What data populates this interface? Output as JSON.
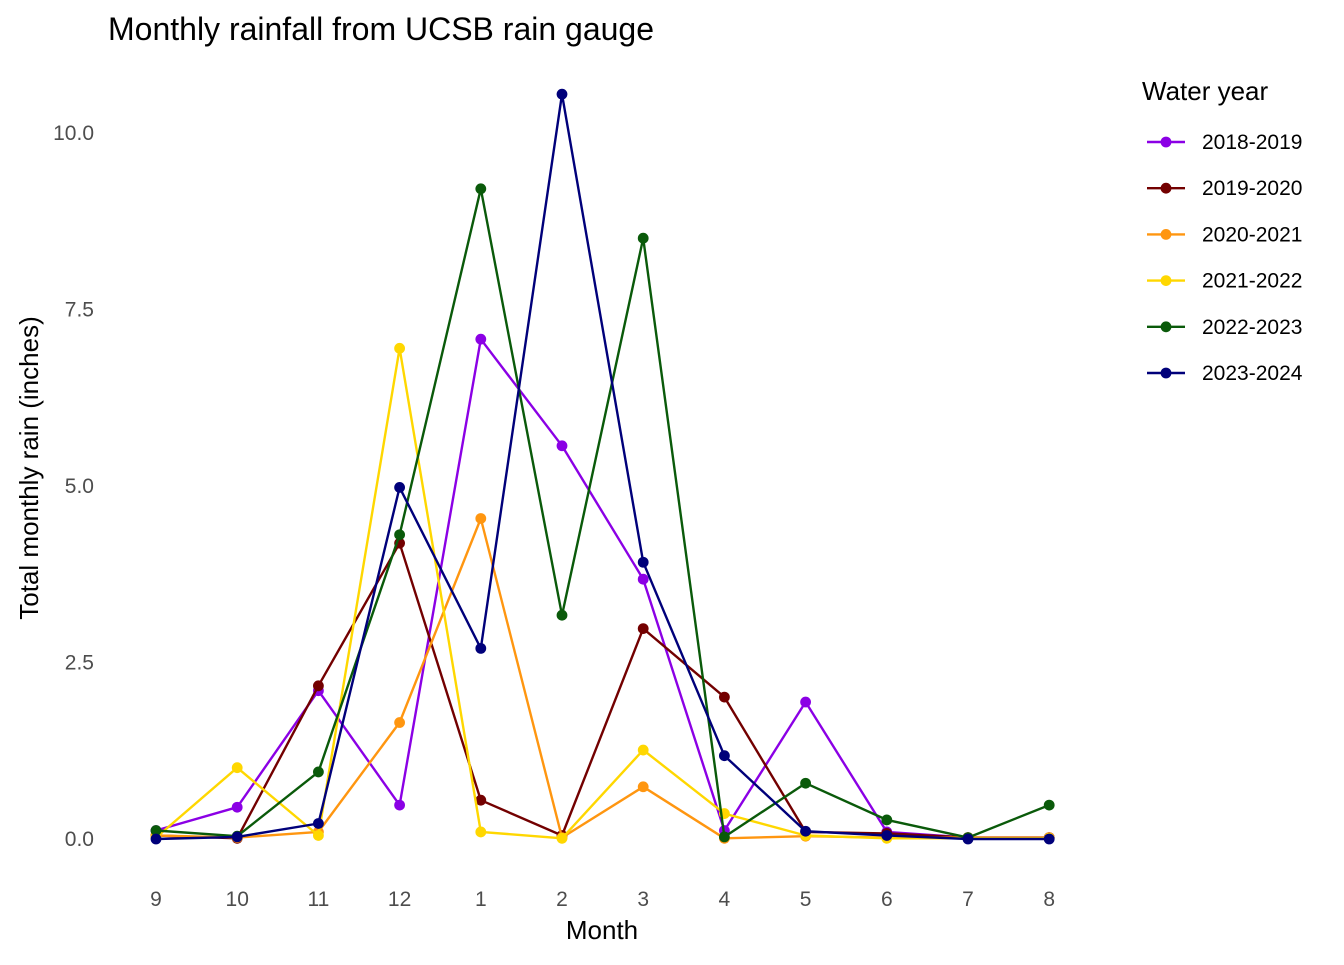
{
  "chart_data": {
    "type": "line",
    "title": "Monthly rainfall from UCSB rain gauge",
    "xlabel": "Month",
    "ylabel": "Total monthly rain (inches)",
    "categories": [
      "9",
      "10",
      "11",
      "12",
      "1",
      "2",
      "3",
      "4",
      "5",
      "6",
      "7",
      "8"
    ],
    "ylim": [
      -0.45,
      10.6
    ],
    "yticks": [
      0.0,
      2.5,
      5.0,
      7.5,
      10.0
    ],
    "ytick_labels": [
      "0.0",
      "2.5",
      "5.0",
      "7.5",
      "10.0"
    ],
    "grid": false,
    "legend": {
      "title": "Water year",
      "position": "right"
    },
    "series": [
      {
        "name": "2018-2019",
        "color": "#8B00E5",
        "values": [
          0.12,
          0.45,
          2.1,
          0.48,
          7.08,
          5.57,
          3.68,
          0.12,
          1.94,
          0.1,
          0.02,
          0.02
        ]
      },
      {
        "name": "2019-2020",
        "color": "#730000",
        "values": [
          0.05,
          0.01,
          2.17,
          4.19,
          0.55,
          0.05,
          2.98,
          2.01,
          0.1,
          0.08,
          0.02,
          0.02
        ]
      },
      {
        "name": "2020-2021",
        "color": "#FF9610",
        "values": [
          0.05,
          0.02,
          0.1,
          1.65,
          4.54,
          0.02,
          0.74,
          0.01,
          0.04,
          0.02,
          0.02,
          0.02
        ]
      },
      {
        "name": "2021-2022",
        "color": "#FFD700",
        "values": [
          0.02,
          1.01,
          0.05,
          6.95,
          0.1,
          0.01,
          1.26,
          0.36,
          0.05,
          0.01,
          0.01,
          0.01
        ]
      },
      {
        "name": "2022-2023",
        "color": "#0A5A0A",
        "values": [
          0.12,
          0.04,
          0.95,
          4.31,
          9.21,
          3.17,
          8.51,
          0.03,
          0.79,
          0.27,
          0.02,
          0.48
        ]
      },
      {
        "name": "2023-2024",
        "color": "#00007A",
        "values": [
          0.0,
          0.03,
          0.22,
          4.98,
          2.7,
          10.55,
          3.92,
          1.18,
          0.11,
          0.05,
          0.0,
          0.0
        ]
      }
    ]
  }
}
